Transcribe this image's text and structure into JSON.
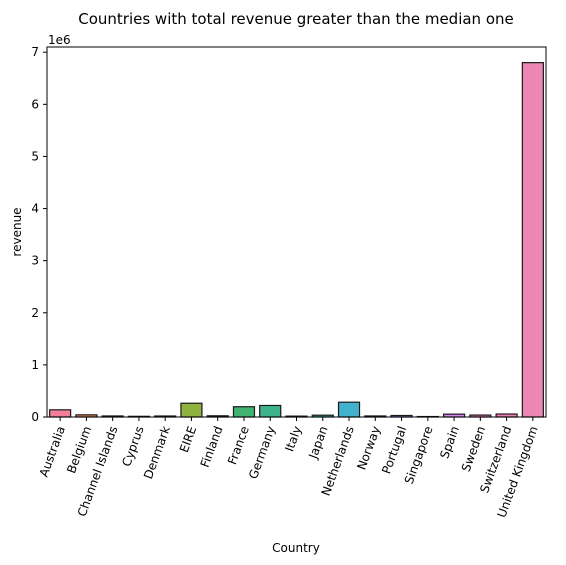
{
  "chart_data": {
    "type": "bar",
    "title": "Countries with total revenue greater than the median one",
    "xlabel": "Country",
    "ylabel": "revenue",
    "y_offset_label": "1e6",
    "y_scale": 1000000,
    "ylim": [
      0,
      7100000
    ],
    "yticks": [
      0,
      1,
      2,
      3,
      4,
      5,
      6,
      7
    ],
    "grid": false,
    "categories": [
      "Australia",
      "Belgium",
      "Channel Islands",
      "Cyprus",
      "Denmark",
      "EIRE",
      "Finland",
      "France",
      "Germany",
      "Italy",
      "Japan",
      "Netherlands",
      "Norway",
      "Portugal",
      "Singapore",
      "Spain",
      "Sweden",
      "Switzerland",
      "United Kingdom"
    ],
    "values": [
      138000,
      41000,
      20000,
      13000,
      19000,
      264000,
      23000,
      197000,
      221000,
      17000,
      35000,
      284000,
      20000,
      29000,
      9000,
      55000,
      37000,
      57000,
      6800000
    ],
    "colors": [
      "#f37e9a",
      "#e98f58",
      "#d59a45",
      "#c4a043",
      "#acaa42",
      "#8fb13f",
      "#5db847",
      "#3fb36f",
      "#3fb38e",
      "#3fb2a3",
      "#40b3b7",
      "#42b2cc",
      "#51a9e8",
      "#8f9bf1",
      "#b58ff1",
      "#d584f1",
      "#ee78d4",
      "#f27cbb",
      "#ee86b5"
    ]
  }
}
